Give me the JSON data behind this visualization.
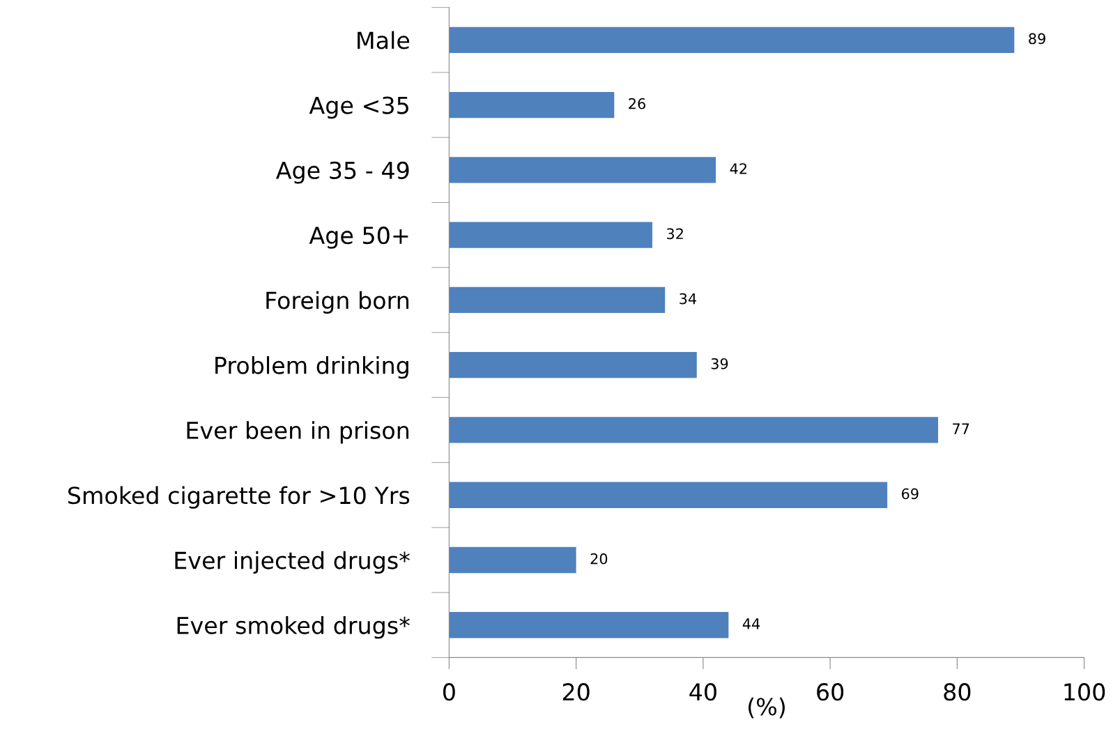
{
  "chart_data": {
    "type": "bar",
    "orientation": "horizontal",
    "xlabel": "(%)",
    "categories": [
      "Male",
      "Age <35",
      "Age 35 - 49",
      "Age 50+",
      "Foreign born",
      "Problem drinking",
      "Ever been in prison",
      "Smoked cigarette for >10 Yrs",
      "Ever injected drugs*",
      "Ever smoked drugs*"
    ],
    "values": [
      89,
      26,
      42,
      32,
      34,
      39,
      77,
      69,
      20,
      44
    ],
    "color": "#4f81bd",
    "data_labels": true,
    "xlim": [
      0,
      100
    ],
    "xticks": [
      0,
      20,
      40,
      60,
      80,
      100
    ],
    "grid": false,
    "legend": false
  }
}
